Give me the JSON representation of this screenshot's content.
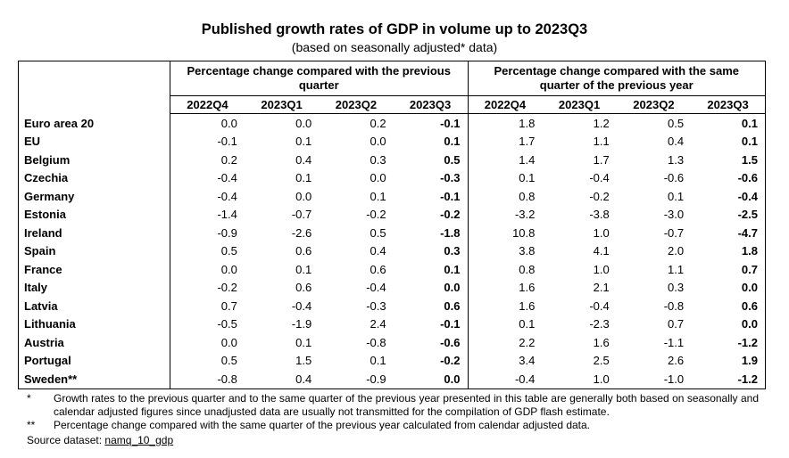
{
  "header": {
    "title": "Published growth rates of GDP in volume up to 2023Q3",
    "subtitle": "(based on seasonally adjusted* data)"
  },
  "table": {
    "groups": [
      {
        "title": "Percentage change compared with the previous quarter",
        "columns": [
          "2022Q4",
          "2023Q1",
          "2023Q2",
          "2023Q3"
        ]
      },
      {
        "title": "Percentage change compared with the same quarter of the previous year",
        "columns": [
          "2022Q4",
          "2023Q1",
          "2023Q2",
          "2023Q3"
        ]
      }
    ],
    "rows": [
      {
        "name": "Euro area 20",
        "values": [
          "0.0",
          "0.0",
          "0.2",
          "-0.1",
          "1.8",
          "1.2",
          "0.5",
          "0.1"
        ]
      },
      {
        "name": "EU",
        "values": [
          "-0.1",
          "0.1",
          "0.0",
          "0.1",
          "1.7",
          "1.1",
          "0.4",
          "0.1"
        ]
      },
      {
        "name": "Belgium",
        "values": [
          "0.2",
          "0.4",
          "0.3",
          "0.5",
          "1.4",
          "1.7",
          "1.3",
          "1.5"
        ]
      },
      {
        "name": "Czechia",
        "values": [
          "-0.4",
          "0.1",
          "0.0",
          "-0.3",
          "0.1",
          "-0.4",
          "-0.6",
          "-0.6"
        ]
      },
      {
        "name": "Germany",
        "values": [
          "-0.4",
          "0.0",
          "0.1",
          "-0.1",
          "0.8",
          "-0.2",
          "0.1",
          "-0.4"
        ]
      },
      {
        "name": "Estonia",
        "values": [
          "-1.4",
          "-0.7",
          "-0.2",
          "-0.2",
          "-3.2",
          "-3.8",
          "-3.0",
          "-2.5"
        ]
      },
      {
        "name": "Ireland",
        "values": [
          "-0.9",
          "-2.6",
          "0.5",
          "-1.8",
          "10.8",
          "1.0",
          "-0.7",
          "-4.7"
        ]
      },
      {
        "name": "Spain",
        "values": [
          "0.5",
          "0.6",
          "0.4",
          "0.3",
          "3.8",
          "4.1",
          "2.0",
          "1.8"
        ]
      },
      {
        "name": "France",
        "values": [
          "0.0",
          "0.1",
          "0.6",
          "0.1",
          "0.8",
          "1.0",
          "1.1",
          "0.7"
        ]
      },
      {
        "name": "Italy",
        "values": [
          "-0.2",
          "0.6",
          "-0.4",
          "0.0",
          "1.6",
          "2.1",
          "0.3",
          "0.0"
        ]
      },
      {
        "name": "Latvia",
        "values": [
          "0.7",
          "-0.4",
          "-0.3",
          "0.6",
          "1.6",
          "-0.4",
          "-0.8",
          "0.6"
        ]
      },
      {
        "name": "Lithuania",
        "values": [
          "-0.5",
          "-1.9",
          "2.4",
          "-0.1",
          "0.1",
          "-2.3",
          "0.7",
          "0.0"
        ]
      },
      {
        "name": "Austria",
        "values": [
          "0.0",
          "0.1",
          "-0.8",
          "-0.6",
          "2.2",
          "1.6",
          "-1.1",
          "-1.2"
        ]
      },
      {
        "name": "Portugal",
        "values": [
          "0.5",
          "1.5",
          "0.1",
          "-0.2",
          "3.4",
          "2.5",
          "2.6",
          "1.9"
        ]
      },
      {
        "name": "Sweden**",
        "values": [
          "-0.8",
          "0.4",
          "-0.9",
          "0.0",
          "-0.4",
          "1.0",
          "-1.0",
          "-1.2"
        ]
      }
    ]
  },
  "footnotes": [
    {
      "mark": "*",
      "text": "Growth rates to the previous quarter and to the same quarter of the previous year presented in this table are generally both based on seasonally and calendar adjusted figures since unadjusted data are usually not transmitted for the compilation of GDP flash estimate."
    },
    {
      "mark": "**",
      "text": "Percentage change compared with the same quarter of the previous year calculated from calendar adjusted data."
    }
  ],
  "source": {
    "label": "Source dataset:",
    "link": "namq_10_gdp"
  }
}
